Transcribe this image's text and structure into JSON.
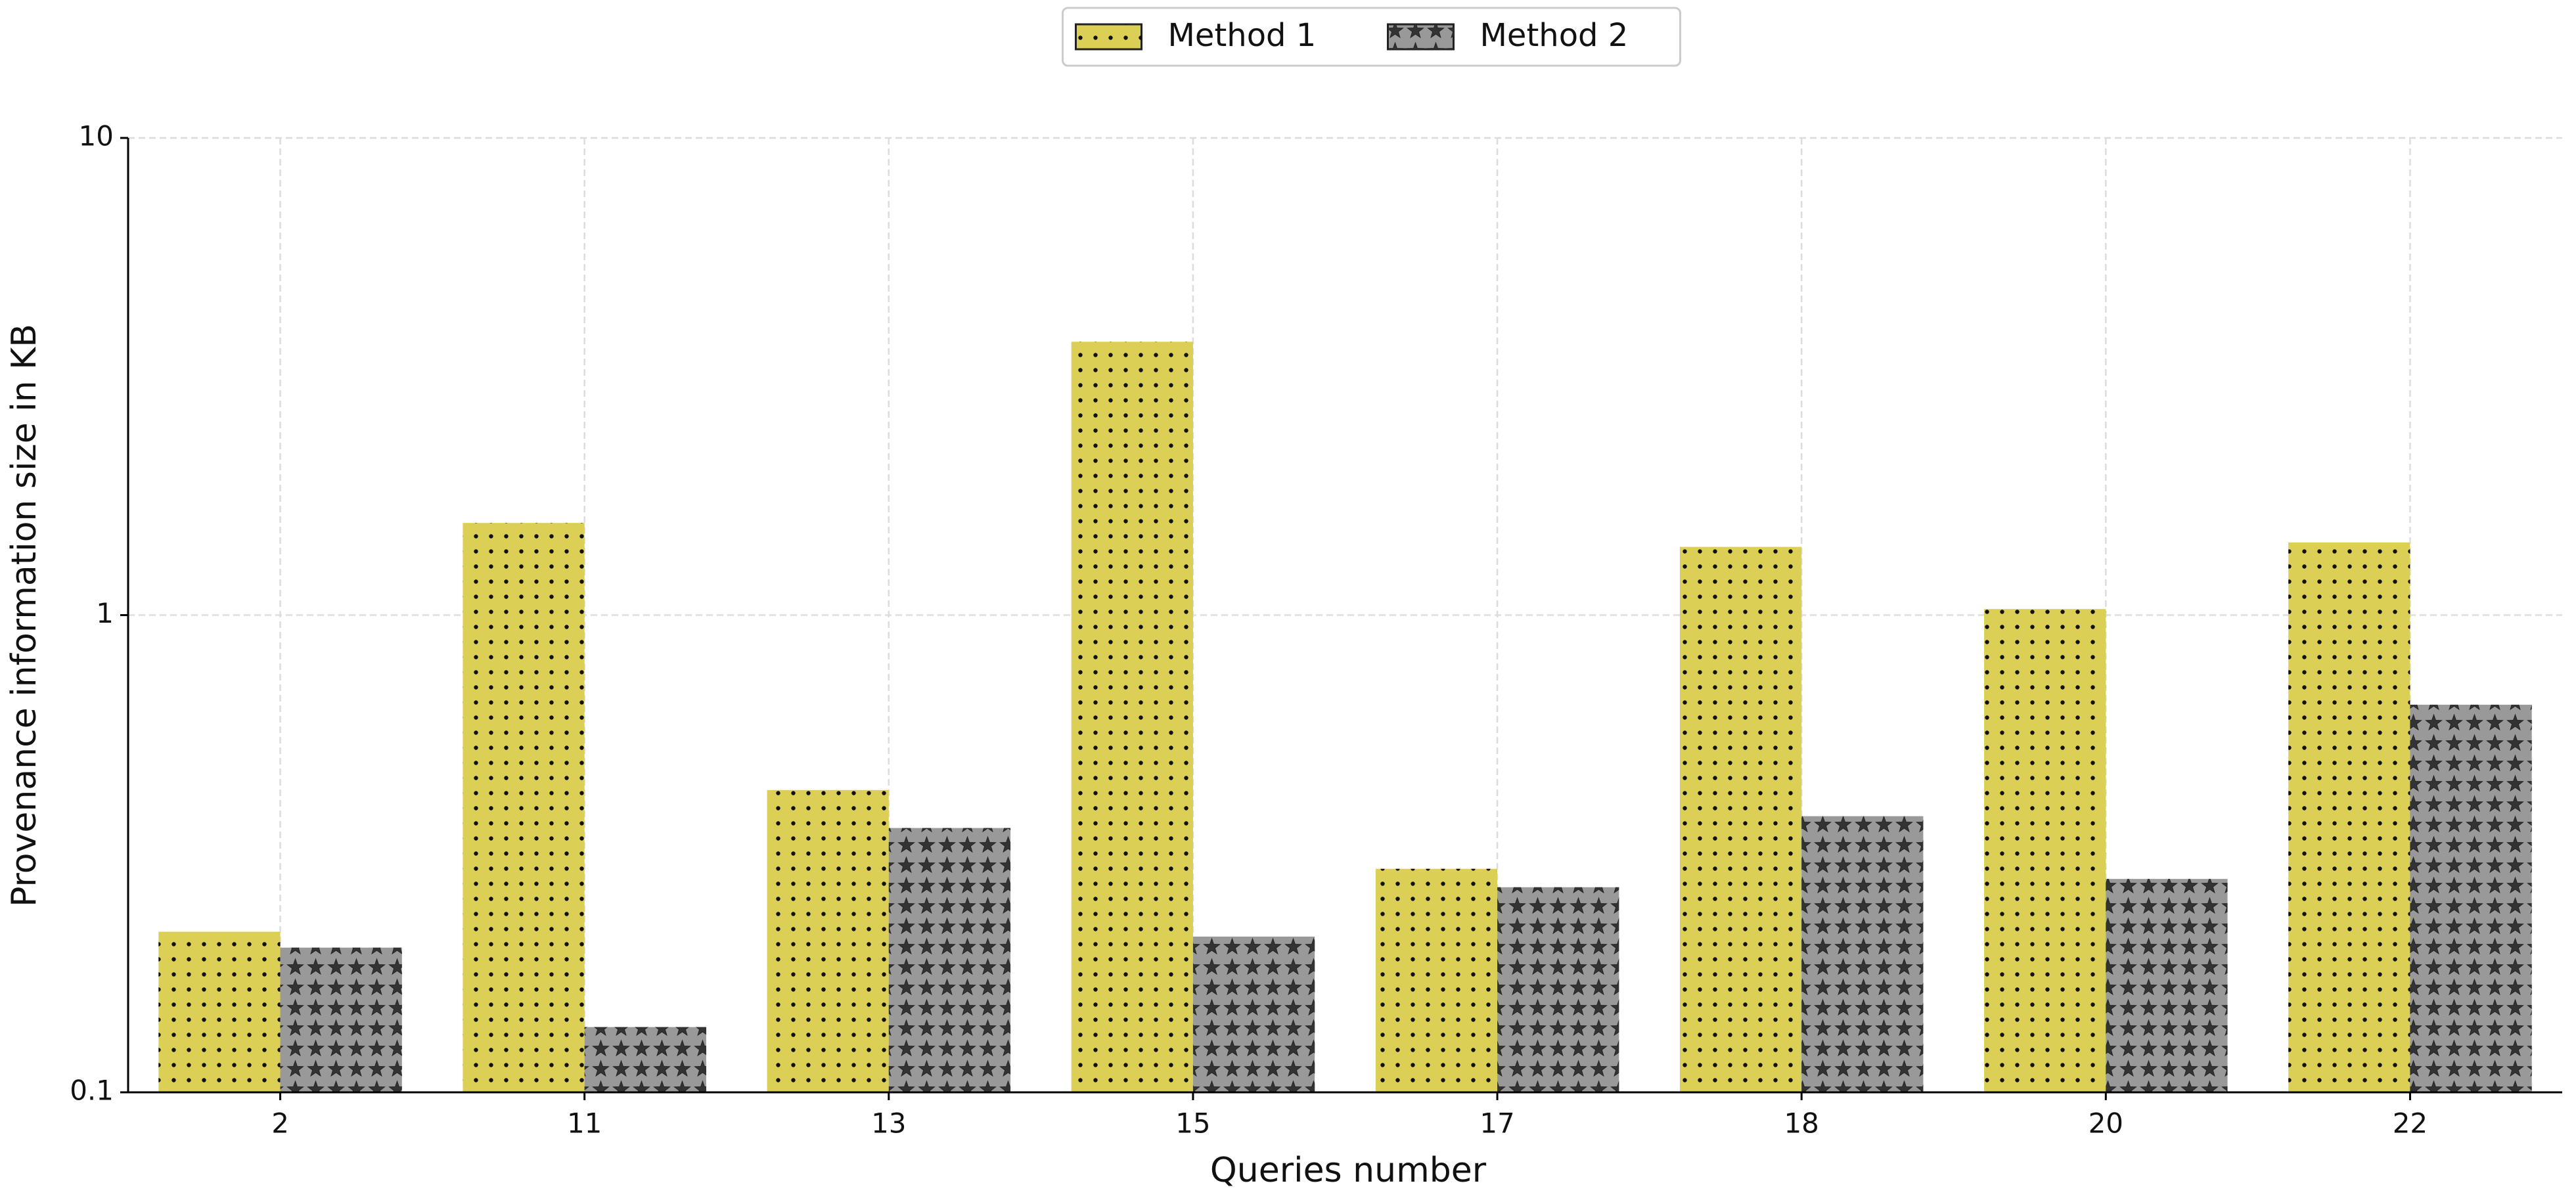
{
  "chart_data": {
    "type": "bar",
    "x_label": "Queries number",
    "y_label": "Provenance information size in KB",
    "categories": [
      "2",
      "11",
      "13",
      "15",
      "17",
      "18",
      "20",
      "22"
    ],
    "series": [
      {
        "name": "Method 1",
        "color": "#dccf55",
        "hatch": ".",
        "values": [
          0.217,
          1.56,
          0.43,
          3.74,
          0.294,
          1.39,
          1.03,
          1.42
        ]
      },
      {
        "name": "Method 2",
        "color": "#999999",
        "hatch": "*",
        "values": [
          0.201,
          0.137,
          0.358,
          0.212,
          0.269,
          0.379,
          0.28,
          0.649
        ]
      }
    ],
    "ylim": [
      0.1,
      10
    ],
    "yticks": [
      0.1,
      1,
      10
    ],
    "log_y": true,
    "grid": true,
    "legend": "upper center"
  }
}
